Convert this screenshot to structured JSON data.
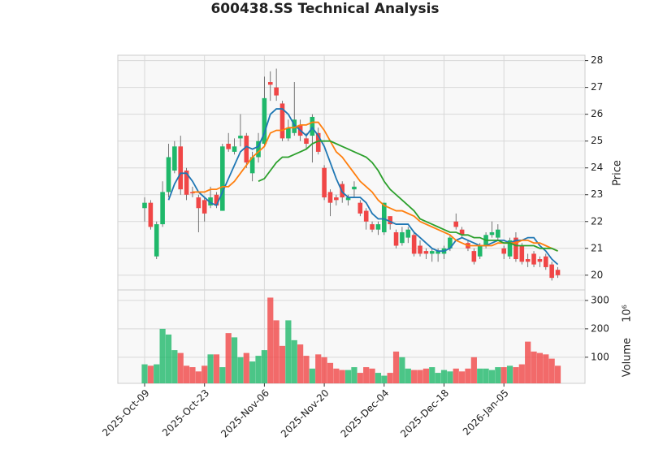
{
  "chart_data": {
    "type": "candlestick",
    "title": "600438.SS Technical Analysis",
    "categories": [
      "2025-Oct-09",
      "2025-Oct-10",
      "2025-Oct-13",
      "2025-Oct-14",
      "2025-Oct-15",
      "2025-Oct-16",
      "2025-Oct-17",
      "2025-Oct-20",
      "2025-Oct-21",
      "2025-Oct-22",
      "2025-Oct-23",
      "2025-Oct-24",
      "2025-Oct-27",
      "2025-Oct-28",
      "2025-Oct-29",
      "2025-Oct-30",
      "2025-Oct-31",
      "2025-Nov-03",
      "2025-Nov-04",
      "2025-Nov-05",
      "2025-Nov-06",
      "2025-Nov-07",
      "2025-Nov-10",
      "2025-Nov-11",
      "2025-Nov-12",
      "2025-Nov-13",
      "2025-Nov-14",
      "2025-Nov-17",
      "2025-Nov-18",
      "2025-Nov-19",
      "2025-Nov-20",
      "2025-Nov-21",
      "2025-Nov-24",
      "2025-Nov-25",
      "2025-Nov-26",
      "2025-Nov-27",
      "2025-Nov-28",
      "2025-Dec-01",
      "2025-Dec-02",
      "2025-Dec-03",
      "2025-Dec-04",
      "2025-Dec-05",
      "2025-Dec-08",
      "2025-Dec-09",
      "2025-Dec-10",
      "2025-Dec-11",
      "2025-Dec-12",
      "2025-Dec-15",
      "2025-Dec-16",
      "2025-Dec-17",
      "2025-Dec-18",
      "2025-Dec-19",
      "2025-Dec-22",
      "2025-Dec-23",
      "2025-Dec-24",
      "2025-Dec-25",
      "2025-Dec-26",
      "2025-Dec-29",
      "2025-Dec-30",
      "2025-Dec-31",
      "2026-Jan-05",
      "2026-Jan-06",
      "2026-Jan-07",
      "2026-Jan-08",
      "2026-Jan-09",
      "2026-Jan-12",
      "2026-Jan-13",
      "2026-Jan-14",
      "2026-Jan-15",
      "2026-Jan-16"
    ],
    "open": [
      22.5,
      22.7,
      20.7,
      21.9,
      23.1,
      23.9,
      24.8,
      23.9,
      23.1,
      22.9,
      22.8,
      22.6,
      23.0,
      22.4,
      24.9,
      24.6,
      25.1,
      25.2,
      23.8,
      24.4,
      24.9,
      27.2,
      27.0,
      26.4,
      25.1,
      25.3,
      25.6,
      25.1,
      25.2,
      25.3,
      24.0,
      23.1,
      22.9,
      23.4,
      22.8,
      23.2,
      22.7,
      22.4,
      21.9,
      21.7,
      21.6,
      22.2,
      21.6,
      21.2,
      21.4,
      21.5,
      21.1,
      20.9,
      20.8,
      20.8,
      20.8,
      21.0,
      22.0,
      21.7,
      21.2,
      20.9,
      20.7,
      21.1,
      21.5,
      21.4,
      21.0,
      20.7,
      21.4,
      21.1,
      20.6,
      20.8,
      20.6,
      20.7,
      20.4,
      20.2
    ],
    "high": [
      22.9,
      22.8,
      22.0,
      23.5,
      24.9,
      25.0,
      25.2,
      24.0,
      23.3,
      23.0,
      22.9,
      23.3,
      23.1,
      24.9,
      25.3,
      25.1,
      26.0,
      25.3,
      24.6,
      25.3,
      27.4,
      27.6,
      27.7,
      26.5,
      25.8,
      27.2,
      25.8,
      25.3,
      26.0,
      25.5,
      24.1,
      23.2,
      23.0,
      23.5,
      23.0,
      23.5,
      22.8,
      22.5,
      22.0,
      22.0,
      22.7,
      22.2,
      21.7,
      21.8,
      21.8,
      21.6,
      21.3,
      21.0,
      21.0,
      21.0,
      21.1,
      21.5,
      22.3,
      21.8,
      21.3,
      21.0,
      21.2,
      21.6,
      22.0,
      21.9,
      21.1,
      21.4,
      21.6,
      21.2,
      20.8,
      20.9,
      20.7,
      20.8,
      20.5,
      20.3
    ],
    "low": [
      22.0,
      21.7,
      20.6,
      21.8,
      22.9,
      23.8,
      23.0,
      22.8,
      22.9,
      21.6,
      22.0,
      22.5,
      22.5,
      22.4,
      24.6,
      24.5,
      24.8,
      24.0,
      23.5,
      24.2,
      24.8,
      26.5,
      26.5,
      25.0,
      25.0,
      25.2,
      25.0,
      24.7,
      24.2,
      24.5,
      22.8,
      22.2,
      22.6,
      22.7,
      22.6,
      22.9,
      22.2,
      21.7,
      21.6,
      21.5,
      21.5,
      21.7,
      21.0,
      21.1,
      21.2,
      20.7,
      20.7,
      20.6,
      20.5,
      20.5,
      20.6,
      20.9,
      21.7,
      21.4,
      20.9,
      20.4,
      20.6,
      21.0,
      21.4,
      21.3,
      20.6,
      20.6,
      20.5,
      20.4,
      20.3,
      20.3,
      20.3,
      20.2,
      19.8,
      19.9
    ],
    "close": [
      22.7,
      21.8,
      21.9,
      23.1,
      24.4,
      24.8,
      23.2,
      23.0,
      23.05,
      22.5,
      22.3,
      22.9,
      22.6,
      24.8,
      24.7,
      24.8,
      25.2,
      24.2,
      24.4,
      25.0,
      26.6,
      27.1,
      26.7,
      25.1,
      25.5,
      25.8,
      25.2,
      24.9,
      25.9,
      24.6,
      22.9,
      22.7,
      22.8,
      22.9,
      22.9,
      23.3,
      22.3,
      22.0,
      21.7,
      21.9,
      22.7,
      21.9,
      21.1,
      21.6,
      21.7,
      20.8,
      20.8,
      20.8,
      20.9,
      20.9,
      21.0,
      21.4,
      21.8,
      21.5,
      21.0,
      20.5,
      21.1,
      21.5,
      21.6,
      21.7,
      20.8,
      21.3,
      20.6,
      20.5,
      20.5,
      20.4,
      20.5,
      20.3,
      19.9,
      20.0
    ],
    "up_color": "#1fb86a",
    "down_color": "#f04646",
    "lines": [
      {
        "color": "#1f77b4",
        "values": [
          null,
          null,
          null,
          null,
          22.8,
          23.4,
          23.8,
          23.8,
          23.5,
          23.1,
          22.9,
          22.7,
          22.6,
          23.1,
          23.6,
          24.1,
          24.6,
          24.8,
          24.7,
          24.8,
          25.3,
          26.0,
          26.2,
          26.2,
          26.0,
          25.6,
          25.4,
          25.2,
          25.5,
          25.2,
          24.8,
          24.2,
          23.6,
          23.1,
          22.9,
          22.9,
          22.9,
          22.7,
          22.3,
          22.1,
          22.1,
          22.0,
          21.9,
          21.9,
          21.9,
          21.6,
          21.4,
          21.2,
          21.0,
          20.9,
          20.9,
          21.0,
          21.3,
          21.4,
          21.3,
          21.2,
          21.1,
          21.1,
          21.2,
          21.3,
          21.3,
          21.2,
          21.3,
          21.3,
          21.4,
          21.4,
          21.1,
          20.9,
          20.6,
          20.4
        ]
      },
      {
        "color": "#ff7f0e",
        "values": [
          null,
          null,
          null,
          null,
          null,
          null,
          null,
          null,
          23.1,
          23.1,
          23.1,
          23.2,
          23.2,
          23.3,
          23.3,
          23.5,
          23.8,
          24.1,
          24.4,
          24.6,
          24.8,
          25.3,
          25.4,
          25.4,
          25.5,
          25.5,
          25.6,
          25.6,
          25.7,
          25.7,
          25.4,
          25.0,
          24.6,
          24.4,
          24.1,
          23.8,
          23.5,
          23.3,
          23.1,
          22.8,
          22.6,
          22.5,
          22.4,
          22.4,
          22.3,
          22.2,
          22.0,
          21.9,
          21.8,
          21.7,
          21.6,
          21.5,
          21.3,
          21.2,
          21.1,
          21.1,
          21.1,
          21.1,
          21.1,
          21.2,
          21.2,
          21.2,
          21.2,
          21.3,
          21.3,
          21.2,
          21.2,
          21.1,
          21.0,
          20.9
        ]
      },
      {
        "color": "#2ca02c",
        "values": [
          null,
          null,
          null,
          null,
          null,
          null,
          null,
          null,
          null,
          null,
          null,
          null,
          null,
          null,
          null,
          null,
          null,
          null,
          null,
          23.5,
          23.6,
          23.9,
          24.2,
          24.4,
          24.4,
          24.5,
          24.6,
          24.7,
          24.9,
          25.0,
          25.0,
          25.0,
          24.9,
          24.8,
          24.7,
          24.6,
          24.5,
          24.4,
          24.2,
          23.9,
          23.5,
          23.2,
          23.0,
          22.8,
          22.6,
          22.4,
          22.1,
          22.0,
          21.9,
          21.8,
          21.7,
          21.6,
          21.6,
          21.5,
          21.5,
          21.4,
          21.4,
          21.3,
          21.3,
          21.3,
          21.2,
          21.2,
          21.1,
          21.1,
          21.1,
          21.1,
          21.0,
          21.0,
          21.0,
          20.9
        ]
      }
    ],
    "ylim": [
      19.45,
      28.2
    ],
    "yticks": [
      20,
      21,
      22,
      23,
      24,
      25,
      26,
      27,
      28
    ],
    "ylabel": "Price",
    "xticks": [
      "2025-Oct-09",
      "2025-Oct-23",
      "2025-Nov-06",
      "2025-Nov-20",
      "2025-Dec-04",
      "2025-Dec-18",
      "2026-Jan-05"
    ],
    "grid": true,
    "volume": {
      "values": [
        75,
        70,
        75,
        200,
        180,
        125,
        115,
        70,
        65,
        50,
        70,
        110,
        110,
        65,
        185,
        170,
        100,
        115,
        85,
        105,
        125,
        310,
        230,
        140,
        230,
        160,
        145,
        105,
        60,
        110,
        100,
        80,
        60,
        55,
        55,
        65,
        45,
        65,
        60,
        45,
        35,
        45,
        120,
        100,
        60,
        55,
        55,
        60,
        65,
        45,
        55,
        50,
        60,
        50,
        60,
        100,
        60,
        60,
        55,
        65,
        65,
        70,
        65,
        75,
        155,
        120,
        115,
        110,
        95,
        70
      ],
      "ylim": [
        8,
        337
      ],
      "yticks": [
        100,
        200,
        300
      ],
      "ylabel": "Volume",
      "unit": "10⁶"
    }
  }
}
